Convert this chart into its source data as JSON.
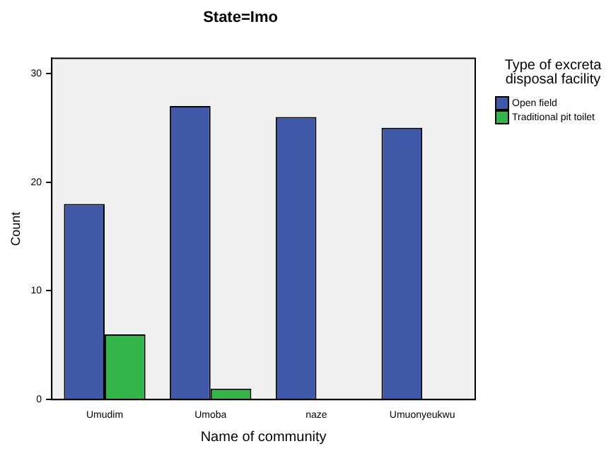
{
  "chart_data": {
    "type": "bar",
    "title": "State=Imo",
    "xlabel": "Name of community",
    "ylabel": "Count",
    "legend_title": "Type of excreta disposal facility",
    "categories": [
      "Umudim",
      "Umoba",
      "naze",
      "Umuonyeukwu"
    ],
    "series": [
      {
        "name": "Open field",
        "color": "#3f58a8",
        "values": [
          18,
          27,
          26,
          25
        ]
      },
      {
        "name": "Traditional pit toilet",
        "color": "#33b54a",
        "values": [
          6,
          1,
          0,
          0
        ]
      }
    ],
    "ylim": [
      0,
      31.4
    ],
    "yticks": [
      0,
      10,
      20,
      30
    ],
    "grid": false,
    "legend": "right"
  }
}
